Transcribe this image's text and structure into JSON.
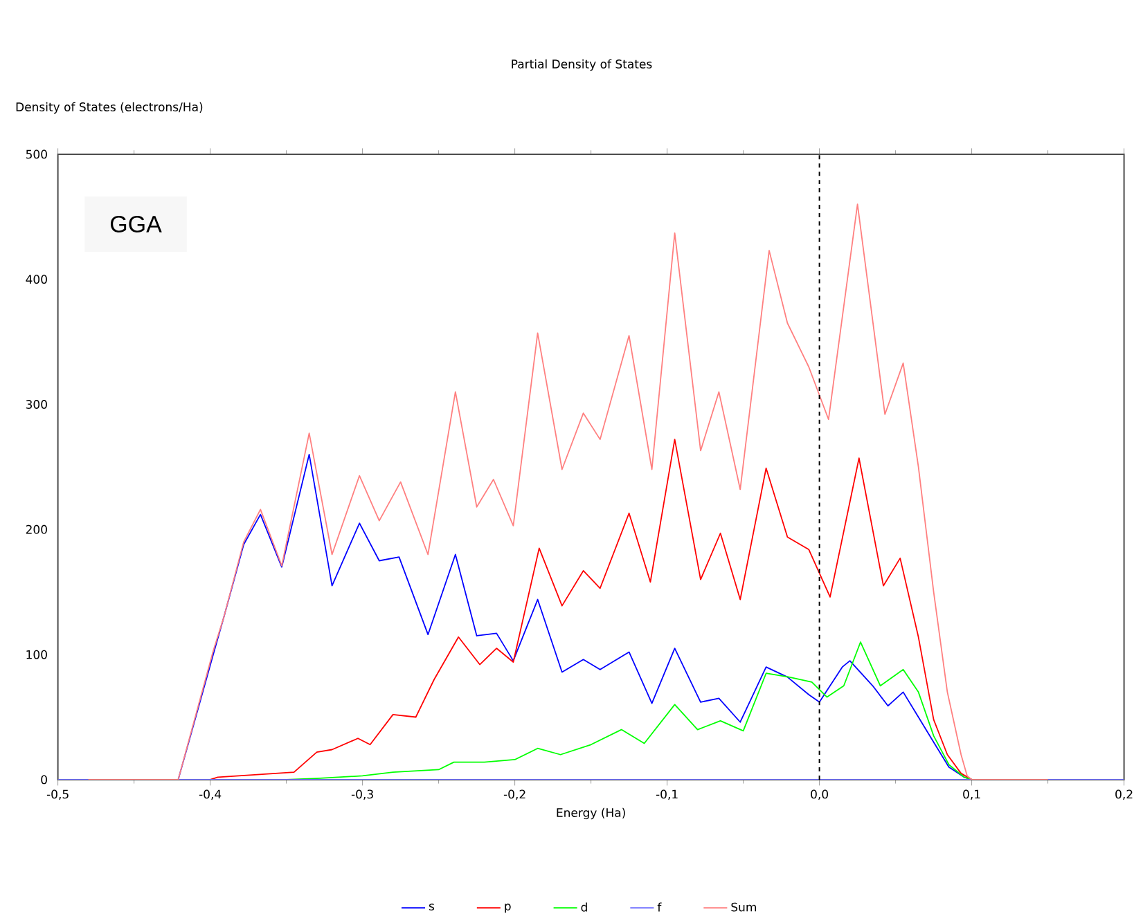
{
  "chart_data": {
    "type": "line",
    "title": "Partial  Density of States",
    "xlabel": "Energy (Ha)",
    "ylabel": "Density of States (electrons/Ha)",
    "annotations": [
      "GGA"
    ],
    "xlim": [
      -0.5,
      0.2
    ],
    "ylim": [
      0,
      500
    ],
    "xticks": [
      {
        "value": -0.5,
        "label": "-0,5"
      },
      {
        "value": -0.4,
        "label": "-0,4"
      },
      {
        "value": -0.3,
        "label": "-0,3"
      },
      {
        "value": -0.2,
        "label": "-0,2"
      },
      {
        "value": -0.1,
        "label": "-0,1"
      },
      {
        "value": 0.0,
        "label": "0,0"
      },
      {
        "value": 0.1,
        "label": "0,1"
      },
      {
        "value": 0.2,
        "label": "0,2"
      }
    ],
    "yticks": [
      0,
      100,
      200,
      300,
      400,
      500
    ],
    "legend": "bottom",
    "line_style": "solid",
    "ref_lines": [
      {
        "axis": "x",
        "value": 0,
        "color": "#000000",
        "line_style": "dashed"
      }
    ],
    "series": [
      {
        "name": "s",
        "color": "#0000ff",
        "x": [
          -0.48,
          -0.421,
          -0.398,
          -0.391,
          -0.378,
          -0.367,
          -0.353,
          -0.335,
          -0.32,
          -0.302,
          -0.289,
          -0.276,
          -0.257,
          -0.239,
          -0.225,
          -0.212,
          -0.201,
          -0.185,
          -0.169,
          -0.155,
          -0.144,
          -0.125,
          -0.11,
          -0.095,
          -0.078,
          -0.066,
          -0.052,
          -0.035,
          -0.021,
          -0.007,
          0.0,
          0.015,
          0.02,
          0.035,
          0.045,
          0.055,
          0.065,
          0.075,
          0.085,
          0.095,
          0.1,
          0.15
        ],
        "values": [
          0,
          0,
          100,
          130,
          188,
          212,
          170,
          260,
          155,
          205,
          175,
          178,
          116,
          180,
          115,
          117,
          95,
          144,
          86,
          96,
          88,
          102,
          61,
          105,
          62,
          65,
          46,
          90,
          82,
          68,
          62,
          90,
          95,
          75,
          59,
          70,
          50,
          30,
          10,
          2,
          0,
          0
        ]
      },
      {
        "name": "p",
        "color": "#ff0000",
        "x": [
          -0.48,
          -0.4,
          -0.395,
          -0.37,
          -0.345,
          -0.33,
          -0.32,
          -0.303,
          -0.295,
          -0.28,
          -0.265,
          -0.253,
          -0.237,
          -0.223,
          -0.212,
          -0.201,
          -0.184,
          -0.169,
          -0.155,
          -0.144,
          -0.125,
          -0.111,
          -0.095,
          -0.078,
          -0.065,
          -0.052,
          -0.035,
          -0.021,
          -0.007,
          0.007,
          0.026,
          0.042,
          0.053,
          0.065,
          0.075,
          0.084,
          0.093,
          0.1,
          0.15
        ],
        "values": [
          0,
          0,
          2,
          4,
          6,
          22,
          24,
          33,
          28,
          52,
          50,
          80,
          114,
          92,
          105,
          94,
          185,
          139,
          167,
          153,
          213,
          158,
          272,
          160,
          197,
          144,
          249,
          194,
          184,
          146,
          257,
          155,
          177,
          114,
          48,
          20,
          5,
          0,
          0
        ]
      },
      {
        "name": "d",
        "color": "#00ff00",
        "x": [
          -0.48,
          -0.35,
          -0.33,
          -0.3,
          -0.28,
          -0.25,
          -0.24,
          -0.22,
          -0.2,
          -0.185,
          -0.17,
          -0.15,
          -0.13,
          -0.115,
          -0.095,
          -0.08,
          -0.065,
          -0.05,
          -0.035,
          -0.02,
          -0.005,
          0.005,
          0.016,
          0.027,
          0.04,
          0.055,
          0.065,
          0.075,
          0.085,
          0.095,
          0.1,
          0.15
        ],
        "values": [
          0,
          0,
          1,
          3,
          6,
          8,
          14,
          14,
          16,
          25,
          20,
          28,
          40,
          29,
          60,
          40,
          47,
          39,
          85,
          82,
          78,
          66,
          75,
          110,
          75,
          88,
          70,
          35,
          12,
          2,
          0,
          0
        ]
      },
      {
        "name": "f",
        "color": "#7070ff",
        "x": [
          -0.5,
          0.2
        ],
        "values": [
          0,
          0
        ]
      },
      {
        "name": "Sum",
        "color": "#ff8080",
        "x": [
          -0.48,
          -0.421,
          -0.398,
          -0.391,
          -0.378,
          -0.367,
          -0.353,
          -0.335,
          -0.32,
          -0.302,
          -0.289,
          -0.275,
          -0.257,
          -0.239,
          -0.225,
          -0.214,
          -0.201,
          -0.185,
          -0.169,
          -0.155,
          -0.144,
          -0.125,
          -0.11,
          -0.095,
          -0.078,
          -0.066,
          -0.052,
          -0.033,
          -0.021,
          -0.007,
          0.006,
          0.025,
          0.043,
          0.055,
          0.065,
          0.075,
          0.084,
          0.093,
          0.097,
          0.1,
          0.15
        ],
        "values": [
          0,
          0,
          103,
          130,
          190,
          216,
          171,
          277,
          180,
          243,
          207,
          238,
          180,
          310,
          218,
          240,
          203,
          357,
          248,
          293,
          272,
          355,
          248,
          437,
          263,
          310,
          232,
          423,
          365,
          330,
          288,
          460,
          292,
          333,
          250,
          150,
          70,
          20,
          3,
          0,
          0
        ]
      }
    ]
  }
}
